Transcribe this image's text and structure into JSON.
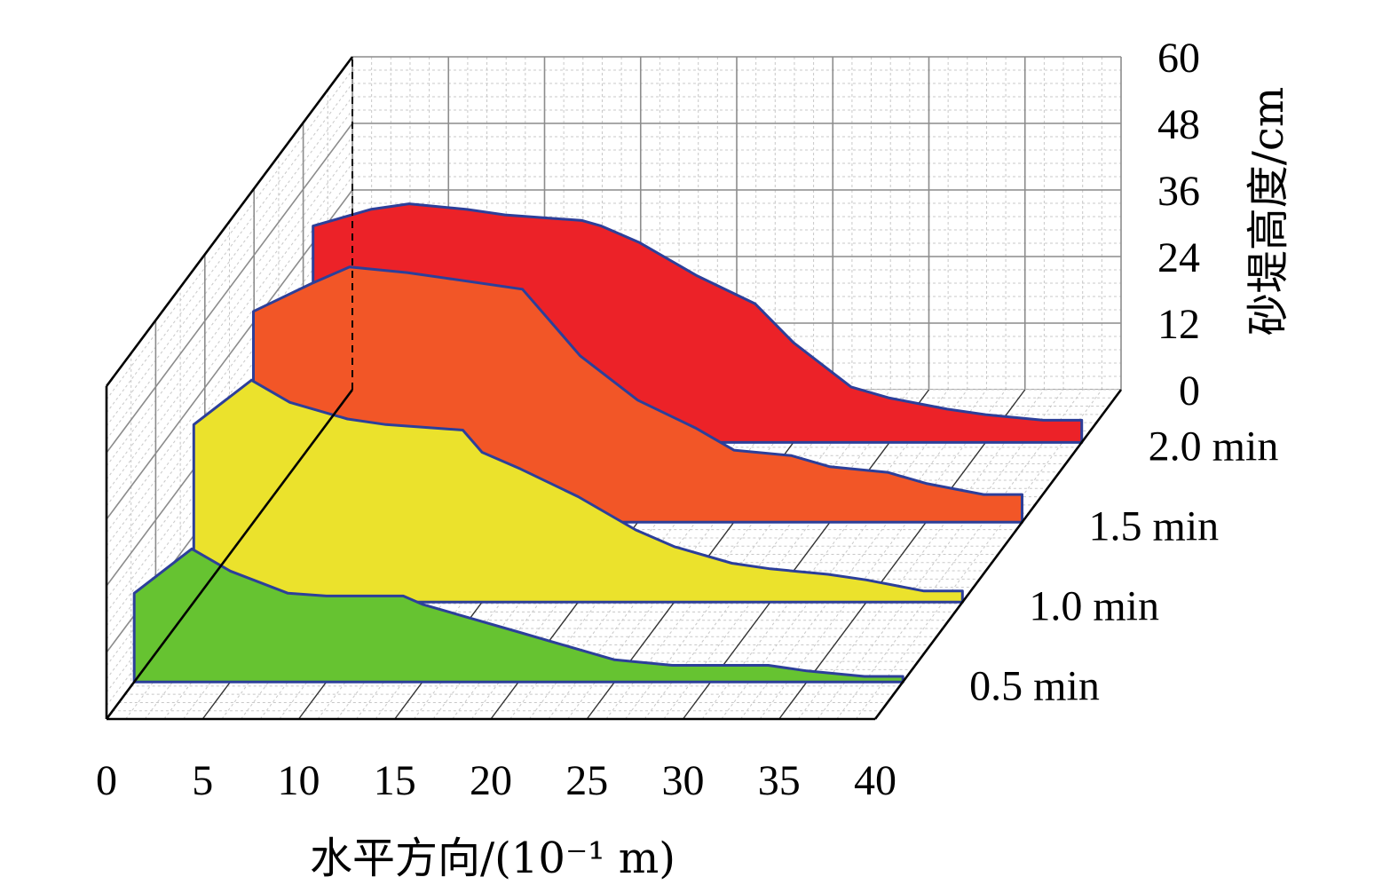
{
  "chart_data": {
    "type": "area",
    "view": "3d-depth",
    "xlabel": "水平方向/(10⁻¹ m)",
    "ylabel": "砂堤高度/cm",
    "x_ticks": [
      "0",
      "5",
      "10",
      "15",
      "20",
      "25",
      "30",
      "35",
      "40"
    ],
    "y_ticks": [
      "0",
      "12",
      "24",
      "36",
      "48",
      "60"
    ],
    "xlim": [
      0,
      40
    ],
    "ylim": [
      0,
      60
    ],
    "grid": true,
    "x": [
      0,
      3,
      5,
      8,
      10,
      14,
      15,
      17,
      20,
      23,
      25,
      28,
      30,
      33,
      35,
      38,
      40
    ],
    "series": [
      {
        "name": "0.5 min",
        "color": "#66c331",
        "values": [
          16,
          24,
          20,
          16,
          15.5,
          15.5,
          14,
          12,
          9,
          6,
          4,
          3,
          3,
          3,
          2,
          1,
          1
        ]
      },
      {
        "name": "1.0 min",
        "color": "#ebe22c",
        "values": [
          32,
          40,
          36,
          33,
          32,
          31,
          27,
          24,
          19,
          13,
          10,
          7,
          6,
          5,
          4,
          2,
          2
        ]
      },
      {
        "name": "1.5 min",
        "color": "#f25627",
        "values": [
          38,
          43,
          46,
          45,
          44,
          42,
          38,
          30,
          22,
          17,
          13,
          12,
          10,
          9,
          7,
          5,
          5
        ]
      },
      {
        "name": "2.0 min",
        "color": "#ec2228",
        "values": [
          39,
          42,
          43,
          42,
          41,
          40,
          39,
          36,
          30,
          25,
          18,
          10,
          8,
          6,
          5,
          4,
          4
        ]
      }
    ]
  }
}
